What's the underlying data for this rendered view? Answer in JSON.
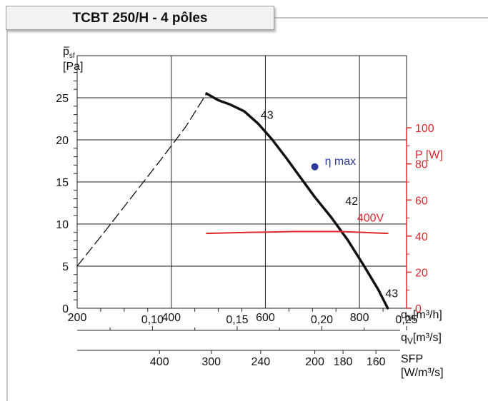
{
  "title": "TCBT 250/H - 4 pôles",
  "chart_data": {
    "type": "line",
    "title": "TCBT 250/H - 4 pôles",
    "x_axis": {
      "label": "q",
      "sub": "V",
      "unit": "[m³/h]",
      "range": [
        200,
        900
      ],
      "ticks": [
        200,
        400,
        600,
        800
      ]
    },
    "y_axis": {
      "label": "p",
      "sub": "sf",
      "unit": "[Pa]",
      "range": [
        0,
        30
      ],
      "ticks": [
        0,
        5,
        10,
        15,
        20,
        25
      ]
    },
    "y2_axis": {
      "label": "P [W]",
      "range": [
        0,
        140
      ],
      "ticks": [
        0,
        20,
        40,
        60,
        80,
        100
      ],
      "color": "#e0282c"
    },
    "qv_m3s_axis": {
      "label": "q",
      "sub": "V",
      "unit": "[m³/s]",
      "ticks": [
        {
          "value": 0.1,
          "label": "0,10"
        },
        {
          "value": 0.15,
          "label": "0,15"
        },
        {
          "value": 0.2,
          "label": "0,20"
        },
        {
          "value": 0.25,
          "label": "0,25"
        }
      ]
    },
    "sfp_axis": {
      "label": "SFP",
      "unit": "[W/m³/s]",
      "ticks": [
        {
          "q": 375,
          "label": "400"
        },
        {
          "q": 485,
          "label": "300"
        },
        {
          "q": 590,
          "label": "240"
        },
        {
          "q": 705,
          "label": "200"
        },
        {
          "q": 765,
          "label": "180"
        },
        {
          "q": 835,
          "label": "160"
        }
      ]
    },
    "series": [
      {
        "color": "#111111",
        "style": "solid",
        "points": [
          [
            475,
            25.5
          ],
          [
            500,
            24.7
          ],
          [
            525,
            24.2
          ],
          [
            555,
            23.4
          ],
          [
            585,
            21.9
          ],
          [
            615,
            20.0
          ],
          [
            645,
            17.8
          ],
          [
            675,
            15.5
          ],
          [
            705,
            13.2
          ],
          [
            740,
            10.8
          ],
          [
            775,
            8.1
          ],
          [
            810,
            5.0
          ],
          [
            840,
            2.2
          ],
          [
            860,
            0
          ]
        ]
      },
      {
        "color": "#111111",
        "style": "dashed",
        "points": [
          [
            200,
            5.0
          ],
          [
            260,
            9.2
          ],
          [
            320,
            13.5
          ],
          [
            380,
            17.8
          ],
          [
            430,
            21.5
          ],
          [
            475,
            25.5
          ]
        ]
      },
      {
        "name": "400V",
        "color": "#e0282c",
        "style": "solid",
        "axis": "y2",
        "points": [
          [
            475,
            41.5
          ],
          [
            560,
            42.0
          ],
          [
            660,
            42.5
          ],
          [
            760,
            42.5
          ],
          [
            860,
            41.5
          ]
        ]
      }
    ],
    "highlight_point": {
      "label": "η max",
      "x": 705,
      "y": 16.8,
      "color": "#2b3a9c"
    },
    "annotations": [
      {
        "text": "43",
        "x": 590,
        "y": 22.5
      },
      {
        "text": "42",
        "x": 770,
        "y": 12.3
      },
      {
        "text": "43",
        "x": 855,
        "y": 1.3
      },
      {
        "text": "400V",
        "x": 795,
        "y": 48,
        "axis": "y2",
        "color": "#e0282c"
      }
    ]
  }
}
